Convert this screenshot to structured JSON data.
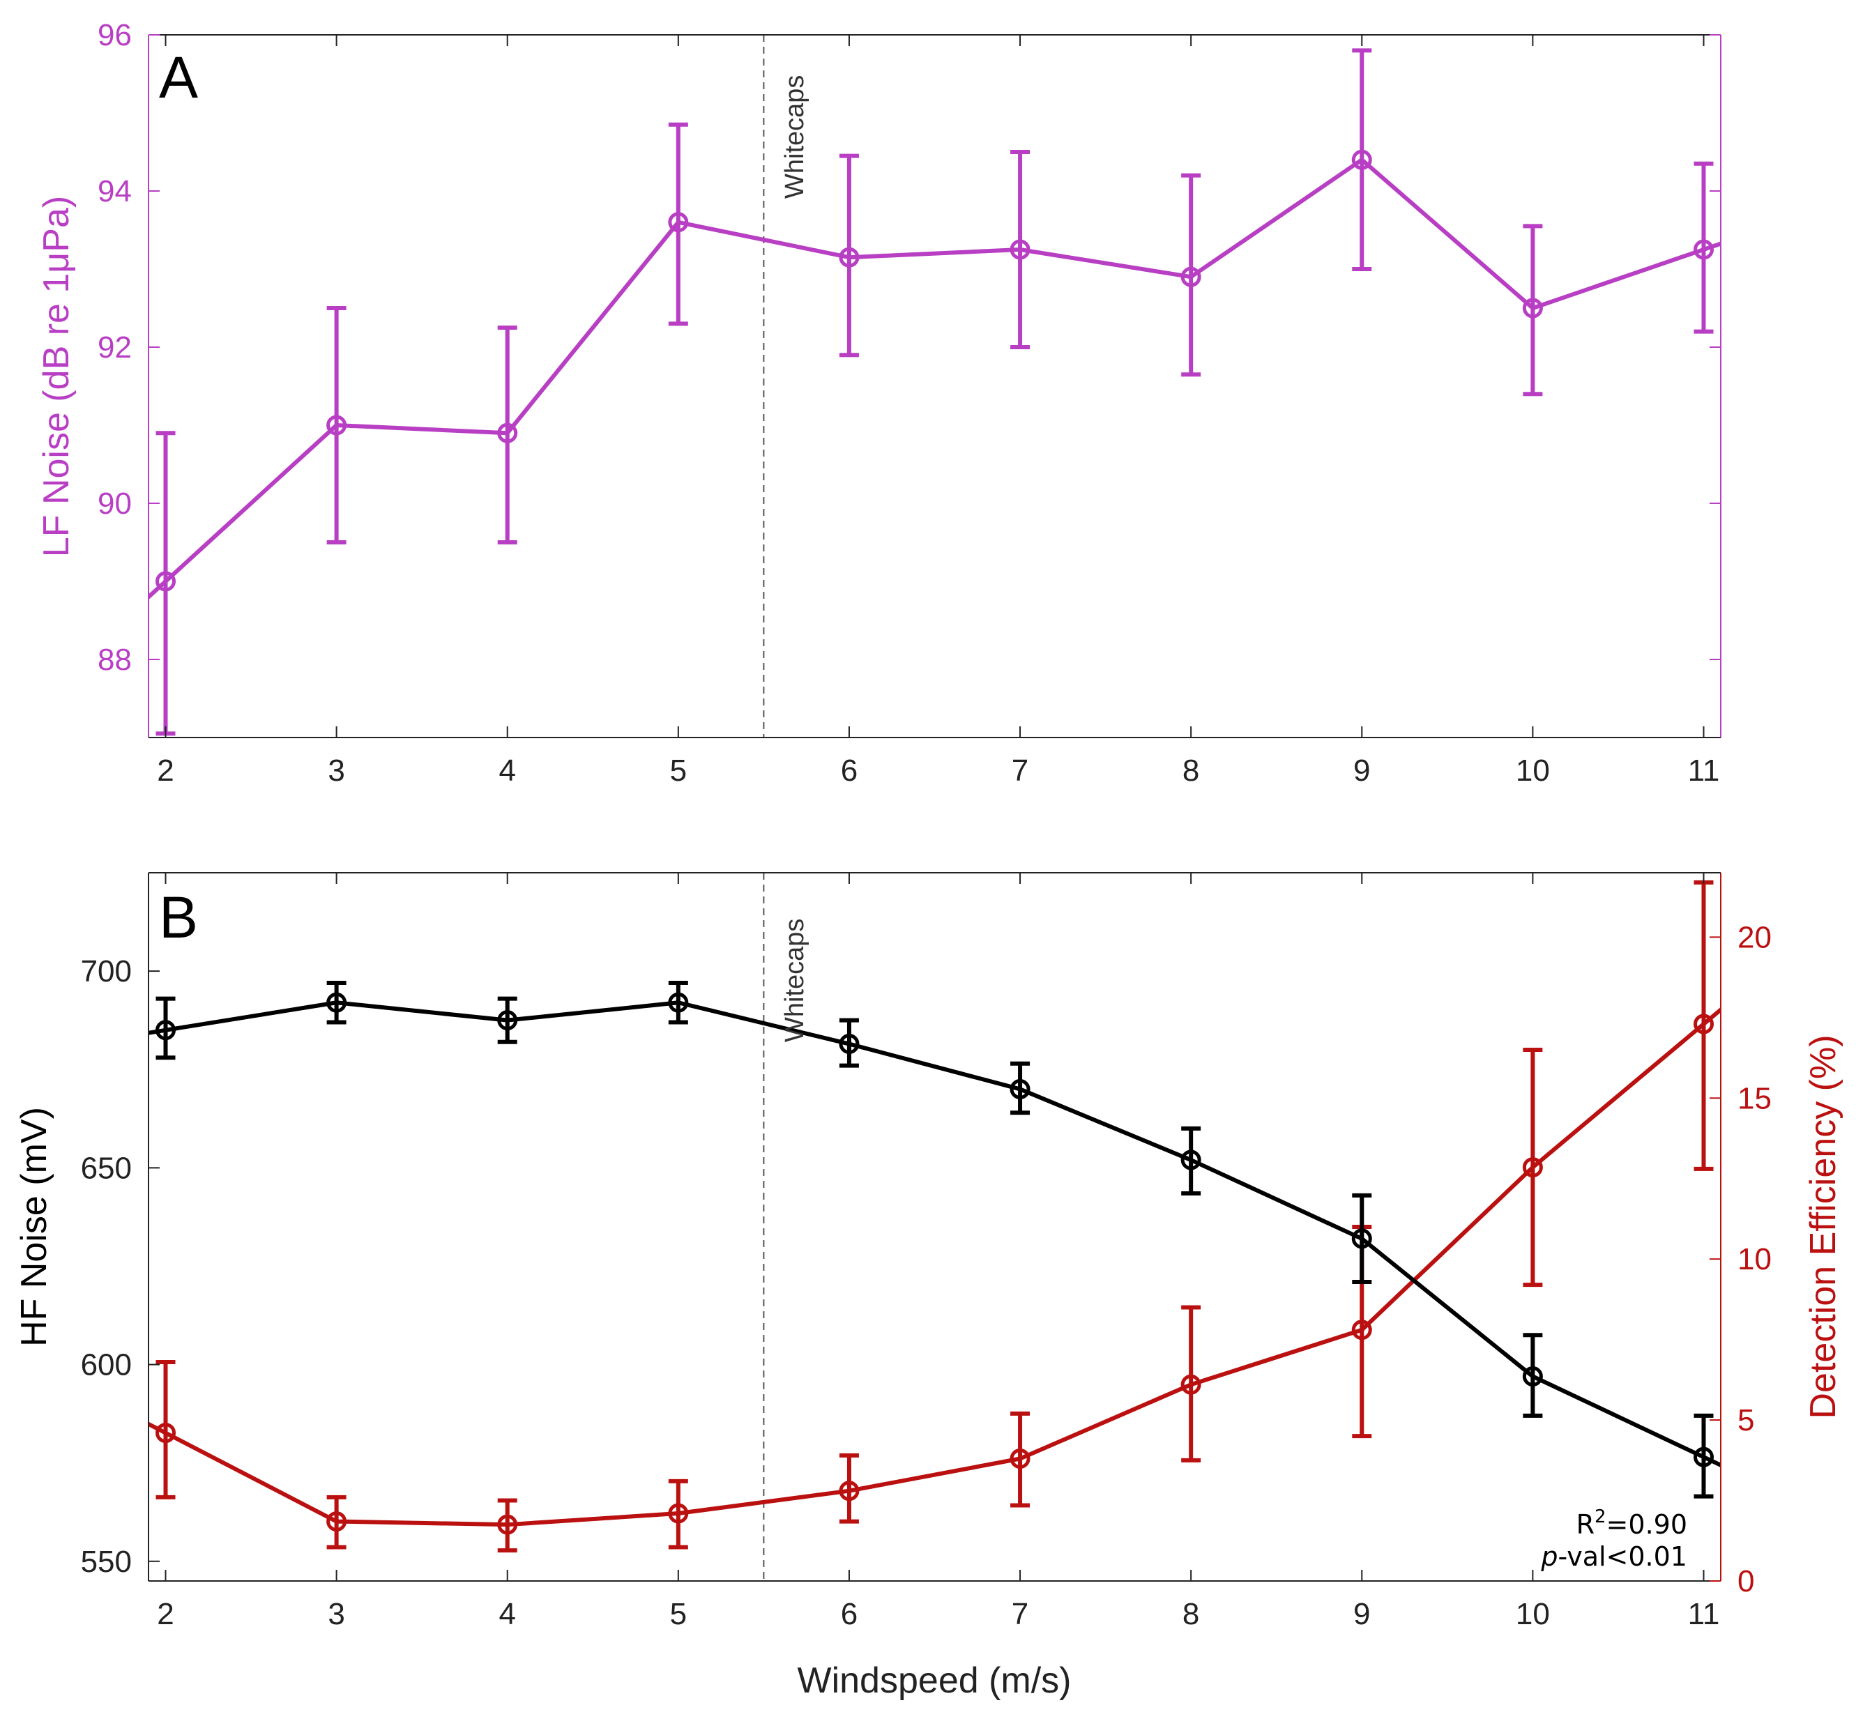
{
  "chart_data": [
    {
      "panel": "A",
      "type": "line",
      "panel_label": "A",
      "xlabel": "",
      "ylabel": "LF Noise (dB re 1μPa)",
      "xlim": [
        1.9,
        11.1
      ],
      "ylim": [
        87,
        96
      ],
      "xticks": [
        2,
        3,
        4,
        5,
        6,
        7,
        8,
        9,
        10,
        11
      ],
      "yticks": [
        88,
        90,
        92,
        94,
        96
      ],
      "grid": false,
      "colors": {
        "series": "#b83fc4",
        "axis": "#b83fc4"
      },
      "x": [
        2,
        3,
        4,
        5,
        6,
        7,
        8,
        9,
        10,
        11
      ],
      "series": [
        {
          "name": "LF Noise",
          "values": [
            89.0,
            91.0,
            90.9,
            93.6,
            93.15,
            93.25,
            92.9,
            94.4,
            92.5,
            93.25
          ],
          "err_low": [
            87.05,
            89.5,
            89.5,
            92.3,
            91.9,
            92.0,
            91.65,
            93.0,
            91.4,
            92.2
          ],
          "err_high": [
            90.9,
            92.5,
            92.25,
            94.85,
            94.45,
            94.5,
            94.2,
            95.8,
            93.55,
            94.35
          ]
        }
      ],
      "annotation": {
        "x": 5.5,
        "text": "Whitecaps"
      }
    },
    {
      "panel": "B",
      "type": "line",
      "panel_label": "B",
      "xlabel": "Windspeed (m/s)",
      "ylabel": "HF Noise (mV)",
      "ylabel_right": "Detection Efficiency (%)",
      "xlim": [
        1.9,
        11.1
      ],
      "ylim": [
        545,
        725
      ],
      "ylim_right": [
        0,
        22
      ],
      "xticks": [
        2,
        3,
        4,
        5,
        6,
        7,
        8,
        9,
        10,
        11
      ],
      "yticks": [
        550,
        600,
        650,
        700
      ],
      "yticks_right": [
        0,
        5,
        10,
        15,
        20
      ],
      "grid": false,
      "colors": {
        "left": "#000000",
        "right": "#bb1010"
      },
      "x": [
        2,
        3,
        4,
        5,
        6,
        7,
        8,
        9,
        10,
        11
      ],
      "series": [
        {
          "name": "HF Noise",
          "axis": "left",
          "values": [
            685,
            692,
            687.5,
            692,
            681.5,
            670,
            652,
            632,
            597,
            576.5
          ],
          "err_low": [
            678,
            687,
            682,
            687,
            676,
            664,
            643.5,
            621,
            587,
            566.5
          ],
          "err_high": [
            693,
            697,
            693,
            697,
            687.5,
            676.5,
            660,
            643,
            607.5,
            587
          ]
        },
        {
          "name": "Detection Efficiency",
          "axis": "right",
          "values": [
            4.6,
            1.85,
            1.75,
            2.1,
            2.8,
            3.8,
            6.1,
            7.8,
            12.85,
            17.3
          ],
          "err_low": [
            2.6,
            1.05,
            0.95,
            1.05,
            1.85,
            2.35,
            3.75,
            4.5,
            9.2,
            12.8
          ],
          "err_high": [
            6.8,
            2.6,
            2.5,
            3.1,
            3.9,
            5.2,
            8.5,
            11.0,
            16.5,
            21.7
          ]
        }
      ],
      "annotation": {
        "x": 5.5,
        "text": "Whitecaps"
      },
      "stats": {
        "r2_label": "R",
        "r2_sup": "2",
        "r2_value": "=0.90",
        "p_label": "p",
        "p_value": "-val<0.01"
      }
    }
  ]
}
